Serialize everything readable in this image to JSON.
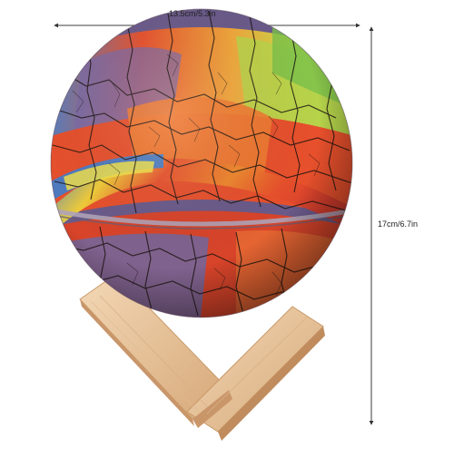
{
  "dimensions": {
    "width_text": "13.5cm/5.3in",
    "height_text": "17cm/6.7in"
  },
  "colors": {
    "sphere_red": "#e8502c",
    "sphere_orange": "#f08a2c",
    "sphere_yellow": "#f2d43a",
    "sphere_green": "#8fcf4a",
    "sphere_blue": "#3f7fd0",
    "sphere_purple": "#7a5aa8",
    "crack_color": "#1c1410",
    "wood_light": "#eecfaa",
    "wood_dark": "#d9ae80",
    "dimension_line": "#333333"
  },
  "icons": {
    "dimension_arrows": "arrow-icon"
  }
}
